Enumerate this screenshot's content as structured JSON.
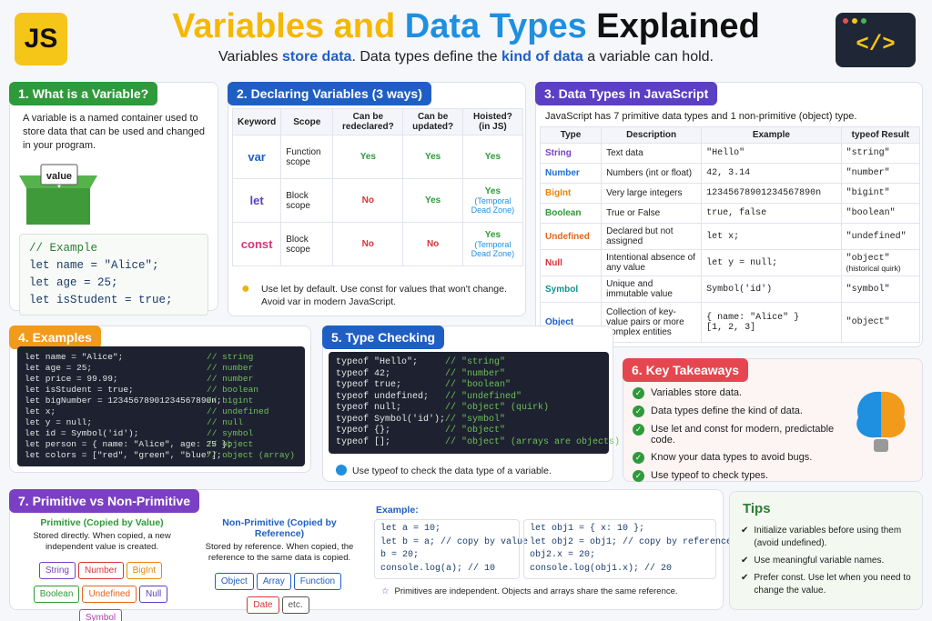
{
  "header": {
    "logo": "JS",
    "title": [
      "Variables and ",
      "Data Types",
      " Explained"
    ],
    "subtitle": [
      "Variables ",
      "store data",
      ". Data types define the ",
      "kind of data",
      " a variable can hold."
    ],
    "icon": "</>"
  },
  "variable": {
    "title": "1. What is a Variable?",
    "text": "A variable is a named container used to store data that can be used and changed in your program.",
    "box_label": "value",
    "code": [
      "// Example",
      "let name = \"Alice\";",
      "let age = 25;",
      "let isStudent = true;"
    ]
  },
  "declaring": {
    "title": "2. Declaring Variables (3 ways)",
    "headers": [
      "Keyword",
      "Scope",
      "Can be redeclared?",
      "Can be updated?",
      "Hoisted? (in JS)"
    ],
    "rows": [
      {
        "keyword": "var",
        "scope": "Function scope",
        "redeclared": "Yes",
        "updated": "Yes",
        "hoisted": "Yes"
      },
      {
        "keyword": "let",
        "scope": "Block scope",
        "redeclared": "No",
        "updated": "Yes",
        "hoisted": "Yes",
        "hoisted_note": "(Temporal Dead Zone)"
      },
      {
        "keyword": "const",
        "scope": "Block scope",
        "redeclared": "No",
        "updated": "No",
        "hoisted": "Yes",
        "hoisted_note": "(Temporal Dead Zone)"
      }
    ],
    "tip": "Use let by default. Use const for values that won't change. Avoid var in modern JavaScript."
  },
  "data_types": {
    "title": "3. Data Types in JavaScript",
    "intro": "JavaScript has 7 primitive data types and 1 non-primitive (object) type.",
    "headers": [
      "Type",
      "Description",
      "Example",
      "typeof Result"
    ],
    "rows": [
      {
        "type": "String",
        "color": "#7b3fc4",
        "description": "Text data",
        "example": "\"Hello\"",
        "typeof": "\"string\""
      },
      {
        "type": "Number",
        "color": "#1f6fd1",
        "description": "Numbers (int or float)",
        "example": "42, 3.14",
        "typeof": "\"number\""
      },
      {
        "type": "BigInt",
        "color": "#e8870c",
        "description": "Very large integers",
        "example": "12345678901234567890n",
        "typeof": "\"bigint\""
      },
      {
        "type": "Boolean",
        "color": "#2e9a3a",
        "description": "True or False",
        "example": "true, false",
        "typeof": "\"boolean\""
      },
      {
        "type": "Undefined",
        "color": "#e5651b",
        "description": "Declared but not assigned",
        "example": "let x;",
        "typeof": "\"undefined\""
      },
      {
        "type": "Null",
        "color": "#d8343a",
        "description": "Intentional absence of any value",
        "example": "let y = null;",
        "typeof": "\"object\"",
        "typeof_note": "(historical quirk)"
      },
      {
        "type": "Symbol",
        "color": "#13928f",
        "description": "Unique and immutable value",
        "example": "Symbol('id')",
        "typeof": "\"symbol\""
      },
      {
        "type": "Object",
        "color": "#1f5fc4",
        "description": "Collection of key-value pairs or more complex entities",
        "example": "{ name: \"Alice\" }",
        "example_line2": "[1, 2, 3]",
        "typeof": "\"object\""
      }
    ]
  },
  "examples": {
    "title": "4. Examples",
    "code": [
      [
        "let name = \"Alice\";",
        "// string"
      ],
      [
        "let age = 25;",
        "// number"
      ],
      [
        "let price = 99.99;",
        "// number"
      ],
      [
        "let isStudent = true;",
        "// boolean"
      ],
      [
        "let bigNumber = 12345678901234567890n;",
        "// bigint"
      ],
      [
        "let x;",
        "// undefined"
      ],
      [
        "let y = null;",
        "// null"
      ],
      [
        "let id = Symbol('id');",
        "// symbol"
      ],
      [
        "let person = { name: \"Alice\", age: 25 };",
        "// object"
      ],
      [
        "let colors = [\"red\", \"green\", \"blue\"];",
        "// object (array)"
      ]
    ]
  },
  "type_checking": {
    "title": "5. Type Checking",
    "code": [
      [
        "typeof \"Hello\";",
        "// \"string\""
      ],
      [
        "typeof 42;",
        "// \"number\""
      ],
      [
        "typeof true;",
        "// \"boolean\""
      ],
      [
        "typeof undefined;",
        "// \"undefined\""
      ],
      [
        "typeof null;",
        "// \"object\" (quirk)"
      ],
      [
        "typeof Symbol('id');",
        "// \"symbol\""
      ],
      [
        "typeof {};",
        "// \"object\""
      ],
      [
        "typeof [];",
        "// \"object\" (arrays are objects)"
      ]
    ],
    "note": "Use typeof to check the data type of a variable."
  },
  "takeaways": {
    "title": "6. Key Takeaways",
    "items": [
      "Variables store data.",
      "Data types define the kind of data.",
      "Use let and const for modern, predictable code.",
      "Know your data types to avoid bugs.",
      "Use typeof to check types."
    ]
  },
  "primitive_vs_non": {
    "title": "7. Primitive vs Non-Primitive",
    "primitive": {
      "heading": "Primitive (Copied by Value)",
      "description": "Stored directly. When copied, a new independent value is created.",
      "tags": [
        {
          "label": "String",
          "color": "#7b3fc4"
        },
        {
          "label": "Number",
          "color": "#d8343a"
        },
        {
          "label": "BigInt",
          "color": "#e8870c"
        },
        {
          "label": "Boolean",
          "color": "#2e9a3a"
        },
        {
          "label": "Undefined",
          "color": "#e5651b"
        },
        {
          "label": "Null",
          "color": "#5b3fc4"
        },
        {
          "label": "Symbol",
          "color": "#b03fb0"
        }
      ]
    },
    "non_primitive": {
      "heading": "Non-Primitive (Copied by Reference)",
      "description": "Stored by reference. When copied, the reference to the same data is copied.",
      "tags": [
        {
          "label": "Object",
          "color": "#1f5fc4"
        },
        {
          "label": "Array",
          "color": "#1f5fc4"
        },
        {
          "label": "Function",
          "color": "#1f5fc4"
        },
        {
          "label": "Date",
          "color": "#d8343a"
        },
        {
          "label": "etc.",
          "color": "#555555"
        }
      ]
    },
    "example_label": "Example:",
    "code_left": [
      "let a = 10;",
      "let b = a; // copy by value",
      "b = 20;",
      "console.log(a); // 10"
    ],
    "code_right": [
      "let obj1 = { x: 10 };",
      "let obj2 = obj1; // copy by reference",
      "obj2.x = 20;",
      "console.log(obj1.x); // 20"
    ],
    "note": "Primitives are independent. Objects and arrays share the same reference."
  },
  "tips": {
    "title": "Tips",
    "items": [
      "Initialize variables before using them (avoid undefined).",
      "Use meaningful variable names.",
      "Prefer const. Use let when you need to change the value."
    ]
  }
}
